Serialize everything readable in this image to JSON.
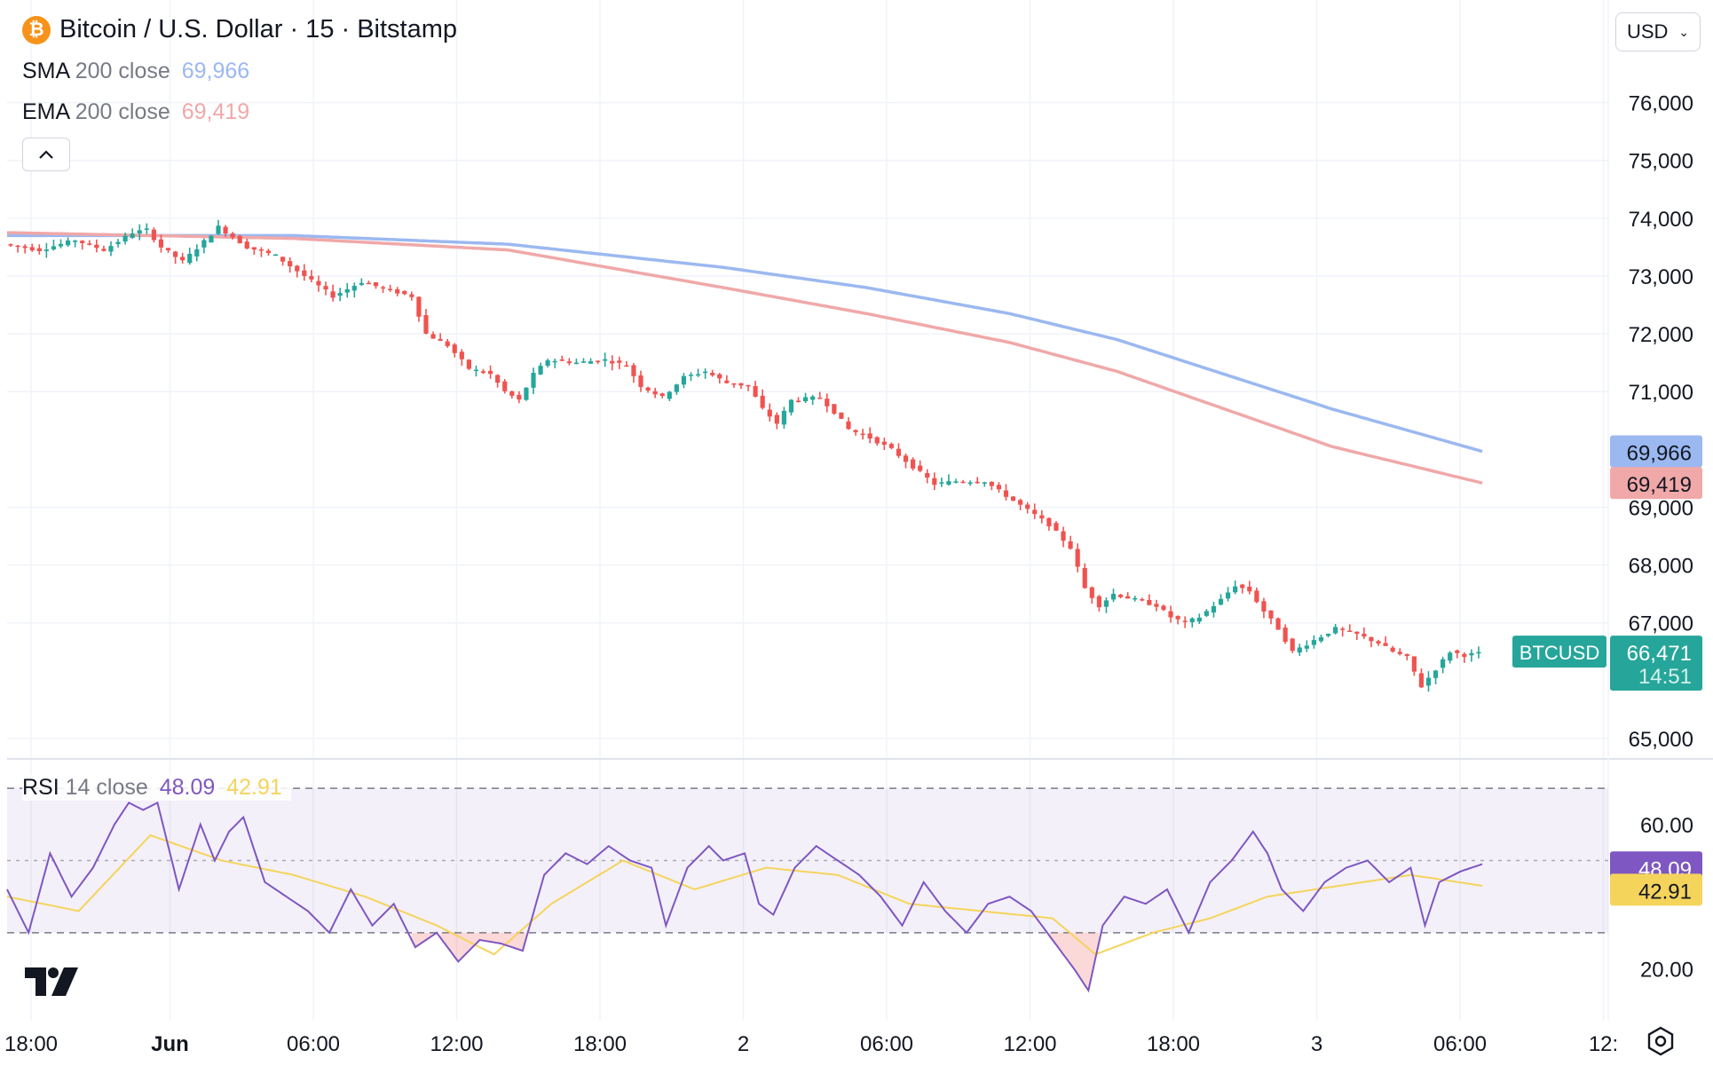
{
  "header": {
    "title": "Bitcoin / U.S. Dollar · 15 · Bitstamp",
    "coin_icon": "bitcoin-icon",
    "currency": "USD"
  },
  "legend": {
    "sma_label": "SMA",
    "sma_params": "200 close",
    "sma_value": "69,966",
    "ema_label": "EMA",
    "ema_params": "200 close",
    "ema_value": "69,419",
    "rsi_label": "RSI",
    "rsi_params": "14 close",
    "rsi_value": "48.09",
    "rsi_ma_value": "42.91"
  },
  "colors": {
    "up": "#26a69a",
    "down": "#ef5350",
    "sma": "#9bb8f0",
    "ema": "#f0a8a8",
    "rsi": "#7e57c2",
    "rsi_ma": "#f5d45c",
    "price_tag": "#26a69a"
  },
  "chart_data": {
    "type": "candlestick",
    "symbol": "BTCUSD",
    "last_price": "66,471",
    "countdown": "14:51",
    "price_axis": {
      "ticks": [
        65000,
        67000,
        68000,
        69000,
        71000,
        72000,
        73000,
        74000,
        75000,
        76000
      ],
      "tick_labels": [
        "65,000",
        "67,000",
        "68,000",
        "69,000",
        "71,000",
        "72,000",
        "73,000",
        "74,000",
        "75,000",
        "76,000"
      ],
      "range": [
        64800,
        76700
      ]
    },
    "time_axis": {
      "labels": [
        "18:00",
        "Jun",
        "06:00",
        "12:00",
        "18:00",
        "2",
        "06:00",
        "12:00",
        "18:00",
        "3",
        "06:00",
        "12:"
      ]
    },
    "price_path": [
      [
        0,
        73550
      ],
      [
        5,
        73450
      ],
      [
        10,
        73620
      ],
      [
        14,
        73450
      ],
      [
        18,
        73750
      ],
      [
        20,
        73800
      ],
      [
        22,
        73500
      ],
      [
        25,
        73250
      ],
      [
        28,
        73600
      ],
      [
        30,
        73850
      ],
      [
        34,
        73500
      ],
      [
        38,
        73350
      ],
      [
        42,
        73000
      ],
      [
        46,
        72650
      ],
      [
        50,
        72900
      ],
      [
        54,
        72750
      ],
      [
        57,
        72650
      ],
      [
        59,
        72000
      ],
      [
        62,
        71800
      ],
      [
        65,
        71400
      ],
      [
        68,
        71300
      ],
      [
        70,
        71000
      ],
      [
        72,
        70850
      ],
      [
        74,
        71300
      ],
      [
        76,
        71550
      ],
      [
        80,
        71500
      ],
      [
        84,
        71550
      ],
      [
        87,
        71450
      ],
      [
        89,
        71100
      ],
      [
        92,
        70900
      ],
      [
        95,
        71250
      ],
      [
        98,
        71350
      ],
      [
        101,
        71150
      ],
      [
        104,
        71100
      ],
      [
        106,
        70700
      ],
      [
        108,
        70450
      ],
      [
        110,
        70850
      ],
      [
        114,
        70900
      ],
      [
        116,
        70650
      ],
      [
        118,
        70350
      ],
      [
        121,
        70200
      ],
      [
        124,
        70000
      ],
      [
        127,
        69700
      ],
      [
        130,
        69400
      ],
      [
        133,
        69450
      ],
      [
        137,
        69450
      ],
      [
        140,
        69200
      ],
      [
        143,
        68950
      ],
      [
        146,
        68700
      ],
      [
        149,
        68300
      ],
      [
        151,
        67600
      ],
      [
        153,
        67300
      ],
      [
        155,
        67500
      ],
      [
        158,
        67400
      ],
      [
        161,
        67300
      ],
      [
        163,
        67100
      ],
      [
        165,
        67000
      ],
      [
        167,
        67100
      ],
      [
        170,
        67400
      ],
      [
        172,
        67650
      ],
      [
        174,
        67550
      ],
      [
        176,
        67200
      ],
      [
        178,
        66900
      ],
      [
        180,
        66500
      ],
      [
        183,
        66700
      ],
      [
        186,
        66900
      ],
      [
        189,
        66800
      ],
      [
        192,
        66650
      ],
      [
        194,
        66500
      ],
      [
        196,
        66400
      ],
      [
        198,
        65900
      ],
      [
        200,
        66200
      ],
      [
        202,
        66500
      ],
      [
        204,
        66440
      ],
      [
        206,
        66471
      ]
    ],
    "sma_path": [
      [
        0,
        73700
      ],
      [
        40,
        73700
      ],
      [
        70,
        73550
      ],
      [
        100,
        73150
      ],
      [
        120,
        72800
      ],
      [
        140,
        72350
      ],
      [
        155,
        71900
      ],
      [
        170,
        71300
      ],
      [
        185,
        70700
      ],
      [
        206,
        69966
      ]
    ],
    "ema_path": [
      [
        0,
        73750
      ],
      [
        40,
        73650
      ],
      [
        70,
        73450
      ],
      [
        100,
        72800
      ],
      [
        120,
        72350
      ],
      [
        140,
        71850
      ],
      [
        155,
        71350
      ],
      [
        170,
        70700
      ],
      [
        185,
        70050
      ],
      [
        206,
        69419
      ]
    ],
    "rsi": {
      "axis_ticks": [
        20,
        60
      ],
      "tick_labels": [
        "20.00",
        "60.00"
      ],
      "range": [
        13,
        72
      ],
      "bands": [
        30,
        50,
        70
      ],
      "value": "48.09",
      "ma_value": "42.91",
      "rsi_path": [
        [
          0,
          42
        ],
        [
          3,
          30
        ],
        [
          6,
          52
        ],
        [
          9,
          40
        ],
        [
          12,
          48
        ],
        [
          15,
          60
        ],
        [
          17,
          66
        ],
        [
          19,
          64
        ],
        [
          21,
          66
        ],
        [
          24,
          42
        ],
        [
          27,
          60
        ],
        [
          29,
          50
        ],
        [
          31,
          58
        ],
        [
          33,
          62
        ],
        [
          36,
          44
        ],
        [
          39,
          40
        ],
        [
          42,
          36
        ],
        [
          45,
          30
        ],
        [
          48,
          42
        ],
        [
          51,
          32
        ],
        [
          54,
          38
        ],
        [
          57,
          26
        ],
        [
          60,
          30
        ],
        [
          63,
          22
        ],
        [
          66,
          28
        ],
        [
          69,
          27
        ],
        [
          72,
          25
        ],
        [
          75,
          46
        ],
        [
          78,
          52
        ],
        [
          81,
          49
        ],
        [
          84,
          54
        ],
        [
          87,
          50
        ],
        [
          90,
          48
        ],
        [
          92,
          32
        ],
        [
          95,
          48
        ],
        [
          98,
          54
        ],
        [
          100,
          50
        ],
        [
          103,
          52
        ],
        [
          105,
          38
        ],
        [
          107,
          35
        ],
        [
          110,
          48
        ],
        [
          113,
          54
        ],
        [
          116,
          50
        ],
        [
          119,
          46
        ],
        [
          122,
          40
        ],
        [
          125,
          32
        ],
        [
          128,
          44
        ],
        [
          131,
          36
        ],
        [
          134,
          30
        ],
        [
          137,
          38
        ],
        [
          140,
          40
        ],
        [
          143,
          36
        ],
        [
          146,
          28
        ],
        [
          149,
          20
        ],
        [
          151,
          14
        ],
        [
          153,
          32
        ],
        [
          156,
          40
        ],
        [
          159,
          38
        ],
        [
          162,
          42
        ],
        [
          165,
          30
        ],
        [
          168,
          44
        ],
        [
          171,
          50
        ],
        [
          174,
          58
        ],
        [
          176,
          52
        ],
        [
          178,
          42
        ],
        [
          181,
          36
        ],
        [
          184,
          44
        ],
        [
          187,
          48
        ],
        [
          190,
          50
        ],
        [
          193,
          44
        ],
        [
          196,
          48
        ],
        [
          198,
          32
        ],
        [
          200,
          44
        ],
        [
          203,
          47
        ],
        [
          206,
          49
        ]
      ],
      "ma_path": [
        [
          0,
          40
        ],
        [
          10,
          36
        ],
        [
          20,
          57
        ],
        [
          30,
          50
        ],
        [
          40,
          46
        ],
        [
          50,
          40
        ],
        [
          60,
          32
        ],
        [
          68,
          24
        ],
        [
          76,
          38
        ],
        [
          86,
          50
        ],
        [
          96,
          42
        ],
        [
          106,
          48
        ],
        [
          116,
          46
        ],
        [
          126,
          38
        ],
        [
          136,
          36
        ],
        [
          146,
          34
        ],
        [
          152,
          24
        ],
        [
          160,
          30
        ],
        [
          168,
          34
        ],
        [
          176,
          40
        ],
        [
          186,
          43
        ],
        [
          196,
          46
        ],
        [
          206,
          43
        ]
      ]
    }
  }
}
